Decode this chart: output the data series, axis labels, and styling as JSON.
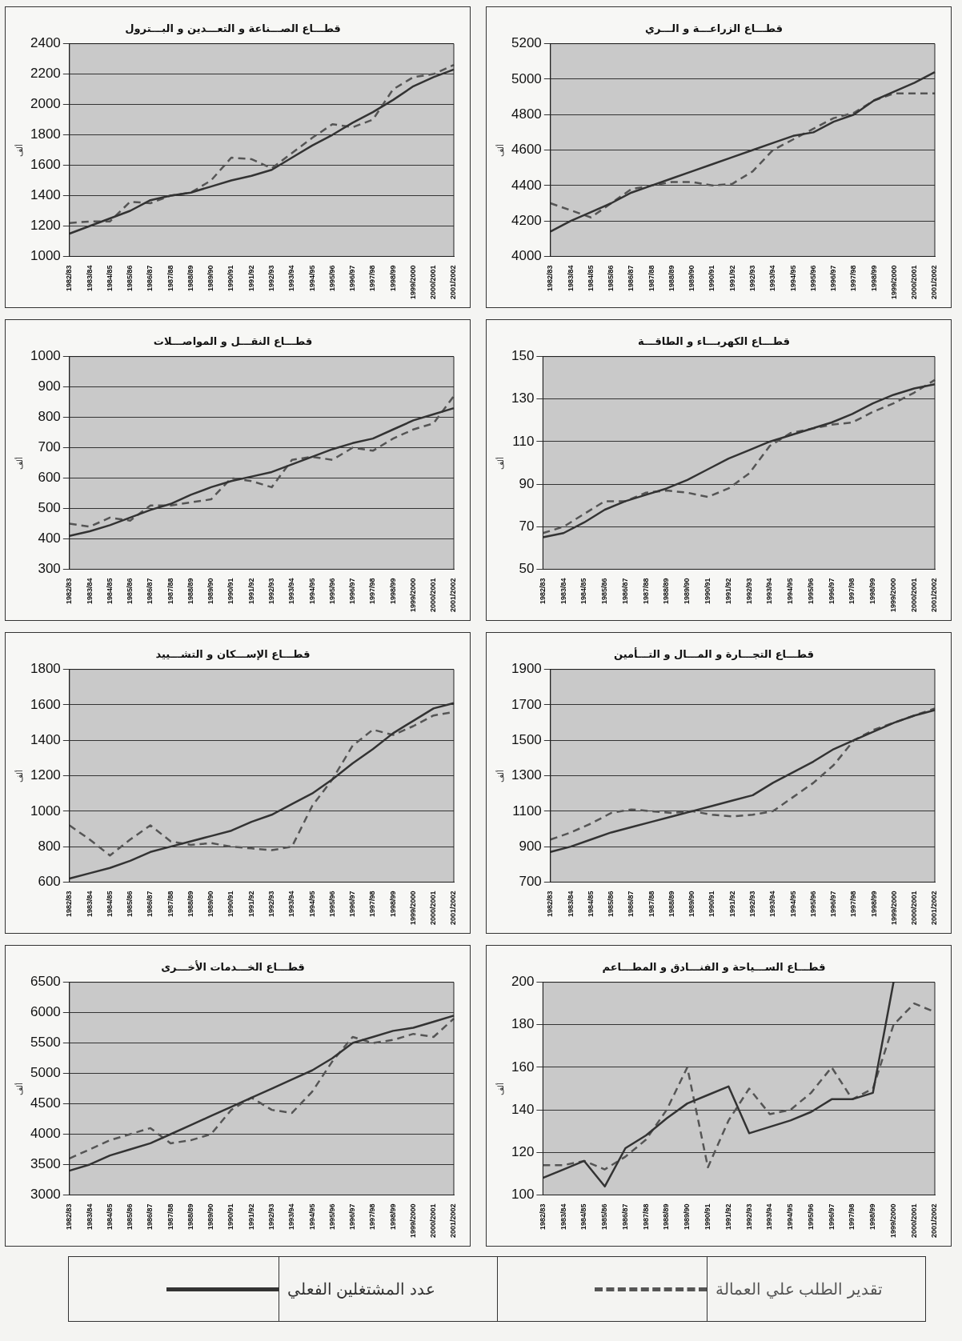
{
  "chart_data": [
    {
      "type": "line",
      "title": "قطـــاع الصـــناعة و التعـــدين و البـــترول",
      "ylabel": "ألف",
      "categories": [
        "1982/83",
        "1983/84",
        "1984/85",
        "1985/86",
        "1986/87",
        "1987/88",
        "1988/89",
        "1989/90",
        "1990/91",
        "1991/92",
        "1992/93",
        "1993/94",
        "1994/95",
        "1995/96",
        "1996/97",
        "1997/98",
        "1998/99",
        "1999/2000",
        "2000/2001",
        "2001/2002"
      ],
      "ylim": [
        1000,
        2400
      ],
      "yticks": [
        1000,
        1200,
        1400,
        1600,
        1800,
        2000,
        2200,
        2400
      ],
      "grid": "y",
      "marker": "none",
      "legend": false,
      "series": [
        {
          "color": "#333333",
          "line_style": "solid",
          "values": [
            1150,
            1200,
            1250,
            1300,
            1370,
            1400,
            1420,
            1460,
            1500,
            1530,
            1570,
            1650,
            1730,
            1800,
            1880,
            1950,
            2030,
            2120,
            2180,
            2230
          ]
        },
        {
          "color": "#555555",
          "line_style": "dashed",
          "values": [
            1220,
            1230,
            1230,
            1360,
            1350,
            1400,
            1420,
            1500,
            1650,
            1640,
            1580,
            1680,
            1780,
            1870,
            1850,
            1900,
            2100,
            2180,
            2200,
            2260
          ]
        }
      ]
    },
    {
      "type": "line",
      "title": "قطـــاع الزراعـــة و الـــري",
      "ylabel": "ألف",
      "categories": [
        "1982/83",
        "1983/84",
        "1984/85",
        "1985/86",
        "1986/87",
        "1987/88",
        "1988/89",
        "1989/90",
        "1990/91",
        "1991/92",
        "1992/93",
        "1993/94",
        "1994/95",
        "1995/96",
        "1996/97",
        "1997/98",
        "1998/99",
        "1999/2000",
        "2000/2001",
        "2001/2002"
      ],
      "ylim": [
        4000,
        5200
      ],
      "yticks": [
        4000,
        4200,
        4400,
        4600,
        4800,
        5000,
        5200
      ],
      "grid": "y",
      "marker": "none",
      "legend": false,
      "series": [
        {
          "color": "#333333",
          "line_style": "solid",
          "values": [
            4140,
            4200,
            4250,
            4300,
            4360,
            4400,
            4440,
            4480,
            4520,
            4560,
            4600,
            4640,
            4680,
            4700,
            4760,
            4800,
            4880,
            4930,
            4980,
            5040
          ]
        },
        {
          "color": "#555555",
          "line_style": "dashed",
          "values": [
            4300,
            4260,
            4220,
            4300,
            4380,
            4400,
            4420,
            4420,
            4400,
            4410,
            4480,
            4600,
            4660,
            4720,
            4780,
            4810,
            4880,
            4920,
            4920,
            4920
          ]
        }
      ]
    },
    {
      "type": "line",
      "title": "قطـــاع النقـــل و المواصـــلات",
      "ylabel": "ألف",
      "categories": [
        "1982/83",
        "1983/84",
        "1984/85",
        "1985/86",
        "1986/87",
        "1987/88",
        "1988/89",
        "1989/90",
        "1990/91",
        "1991/92",
        "1992/93",
        "1993/94",
        "1994/95",
        "1995/96",
        "1996/97",
        "1997/98",
        "1998/99",
        "1999/2000",
        "2000/2001",
        "2001/2002"
      ],
      "ylim": [
        300,
        1000
      ],
      "yticks": [
        300,
        400,
        500,
        600,
        700,
        800,
        900,
        1000
      ],
      "grid": "y",
      "marker": "none",
      "legend": false,
      "series": [
        {
          "color": "#333333",
          "line_style": "solid",
          "values": [
            410,
            425,
            445,
            470,
            495,
            515,
            545,
            570,
            590,
            605,
            620,
            645,
            670,
            695,
            715,
            730,
            760,
            790,
            810,
            830
          ]
        },
        {
          "color": "#555555",
          "line_style": "dashed",
          "values": [
            450,
            440,
            470,
            460,
            510,
            510,
            520,
            530,
            600,
            590,
            570,
            660,
            670,
            660,
            700,
            690,
            730,
            760,
            780,
            870
          ]
        }
      ]
    },
    {
      "type": "line",
      "title": "قطـــاع الكهربـــاء و الطاقـــة",
      "ylabel": "ألف",
      "categories": [
        "1982/83",
        "1983/84",
        "1984/85",
        "1985/86",
        "1986/87",
        "1987/88",
        "1988/89",
        "1989/90",
        "1990/91",
        "1991/92",
        "1992/93",
        "1993/94",
        "1994/95",
        "1995/96",
        "1996/97",
        "1997/98",
        "1998/99",
        "1999/2000",
        "2000/2001",
        "2001/2002"
      ],
      "ylim": [
        50,
        150
      ],
      "yticks": [
        50,
        70,
        90,
        110,
        130,
        150
      ],
      "grid": "y",
      "marker": "none",
      "legend": false,
      "series": [
        {
          "color": "#333333",
          "line_style": "solid",
          "values": [
            65,
            67,
            72,
            78,
            82,
            85,
            88,
            92,
            97,
            102,
            106,
            110,
            113,
            116,
            119,
            123,
            128,
            132,
            135,
            137
          ]
        },
        {
          "color": "#555555",
          "line_style": "dashed",
          "values": [
            67,
            70,
            76,
            82,
            82,
            86,
            87,
            86,
            84,
            88,
            95,
            108,
            114,
            116,
            118,
            119,
            124,
            128,
            133,
            139
          ]
        }
      ]
    },
    {
      "type": "line",
      "title": "قطـــاع الإســـكان و التشـــييد",
      "ylabel": "ألف",
      "categories": [
        "1982/83",
        "1983/84",
        "1984/85",
        "1985/86",
        "1986/87",
        "1987/88",
        "1988/89",
        "1989/90",
        "1990/91",
        "1991/92",
        "1992/93",
        "1993/94",
        "1994/95",
        "1995/96",
        "1996/97",
        "1997/98",
        "1998/99",
        "1999/2000",
        "2000/2001",
        "2001/2002"
      ],
      "ylim": [
        600,
        1800
      ],
      "yticks": [
        600,
        800,
        1000,
        1200,
        1400,
        1600,
        1800
      ],
      "grid": "y",
      "marker": "none",
      "legend": false,
      "series": [
        {
          "color": "#333333",
          "line_style": "solid",
          "values": [
            620,
            650,
            680,
            720,
            770,
            800,
            830,
            860,
            890,
            940,
            980,
            1040,
            1100,
            1180,
            1270,
            1350,
            1440,
            1510,
            1580,
            1610
          ]
        },
        {
          "color": "#555555",
          "line_style": "dashed",
          "values": [
            920,
            840,
            750,
            840,
            920,
            830,
            810,
            820,
            800,
            790,
            780,
            800,
            1030,
            1180,
            1370,
            1460,
            1430,
            1480,
            1540,
            1560
          ]
        }
      ]
    },
    {
      "type": "line",
      "title": "قطـــاع التجـــارة و المـــال و التـــأمين",
      "ylabel": "ألف",
      "categories": [
        "1982/83",
        "1983/84",
        "1984/85",
        "1985/86",
        "1986/87",
        "1987/88",
        "1988/89",
        "1989/90",
        "1990/91",
        "1991/92",
        "1992/93",
        "1993/94",
        "1994/95",
        "1995/96",
        "1996/97",
        "1997/98",
        "1998/99",
        "1999/2000",
        "2000/2001",
        "2001/2002"
      ],
      "ylim": [
        700,
        1900
      ],
      "yticks": [
        700,
        900,
        1100,
        1300,
        1500,
        1700,
        1900
      ],
      "grid": "y",
      "marker": "none",
      "legend": false,
      "series": [
        {
          "color": "#333333",
          "line_style": "solid",
          "values": [
            870,
            900,
            940,
            980,
            1010,
            1040,
            1070,
            1100,
            1130,
            1160,
            1190,
            1260,
            1320,
            1380,
            1450,
            1500,
            1550,
            1600,
            1640,
            1670
          ]
        },
        {
          "color": "#555555",
          "line_style": "dashed",
          "values": [
            940,
            980,
            1030,
            1090,
            1110,
            1100,
            1090,
            1100,
            1080,
            1070,
            1080,
            1100,
            1180,
            1260,
            1360,
            1500,
            1560,
            1600,
            1640,
            1680
          ]
        }
      ]
    },
    {
      "type": "line",
      "title": "قطـــاع الخـــدمات الأخـــرى",
      "ylabel": "ألف",
      "categories": [
        "1982/83",
        "1983/84",
        "1984/85",
        "1985/86",
        "1986/87",
        "1987/88",
        "1988/89",
        "1989/90",
        "1990/91",
        "1991/92",
        "1992/93",
        "1993/94",
        "1994/95",
        "1995/96",
        "1996/97",
        "1997/98",
        "1998/99",
        "1999/2000",
        "2000/2001",
        "2001/2002"
      ],
      "ylim": [
        3000,
        6500
      ],
      "yticks": [
        3000,
        3500,
        4000,
        4500,
        5000,
        5500,
        6000,
        6500
      ],
      "grid": "y",
      "marker": "none",
      "legend": false,
      "series": [
        {
          "color": "#333333",
          "line_style": "solid",
          "values": [
            3400,
            3500,
            3650,
            3750,
            3850,
            4000,
            4150,
            4300,
            4450,
            4600,
            4750,
            4900,
            5050,
            5250,
            5500,
            5600,
            5700,
            5750,
            5850,
            5950
          ]
        },
        {
          "color": "#555555",
          "line_style": "dashed",
          "values": [
            3600,
            3750,
            3900,
            4000,
            4100,
            3850,
            3900,
            4000,
            4400,
            4600,
            4400,
            4350,
            4700,
            5200,
            5600,
            5500,
            5550,
            5650,
            5600,
            5900
          ]
        }
      ]
    },
    {
      "type": "line",
      "title": "قطـــاع الســـياحة و الفنـــادق و المطـــاعم",
      "ylabel": "ألف",
      "categories": [
        "1982/83",
        "1983/84",
        "1984/85",
        "1985/86",
        "1986/87",
        "1987/88",
        "1988/89",
        "1989/90",
        "1990/91",
        "1991/92",
        "1992/93",
        "1993/94",
        "1994/95",
        "1995/96",
        "1996/97",
        "1997/98",
        "1998/99",
        "1999/2000",
        "2000/2001",
        "2001/2002"
      ],
      "ylim": [
        100,
        200
      ],
      "yticks": [
        100,
        120,
        140,
        160,
        180,
        200
      ],
      "grid": "y",
      "marker": "none",
      "legend": "bottom",
      "series": [
        {
          "name": "عدد المشتغلين الفعلي",
          "color": "#333333",
          "line_style": "solid",
          "values": [
            108,
            112,
            116,
            104,
            122,
            128,
            136,
            143,
            147,
            151,
            129,
            132,
            135,
            139,
            145,
            145,
            148,
            200,
            null,
            null
          ]
        },
        {
          "name": "تقدير الطلب علي العمالة",
          "color": "#555555",
          "line_style": "dashed",
          "values": [
            114,
            114,
            116,
            112,
            118,
            126,
            140,
            160,
            113,
            135,
            150,
            138,
            140,
            148,
            160,
            145,
            150,
            180,
            190,
            186
          ]
        }
      ]
    }
  ]
}
